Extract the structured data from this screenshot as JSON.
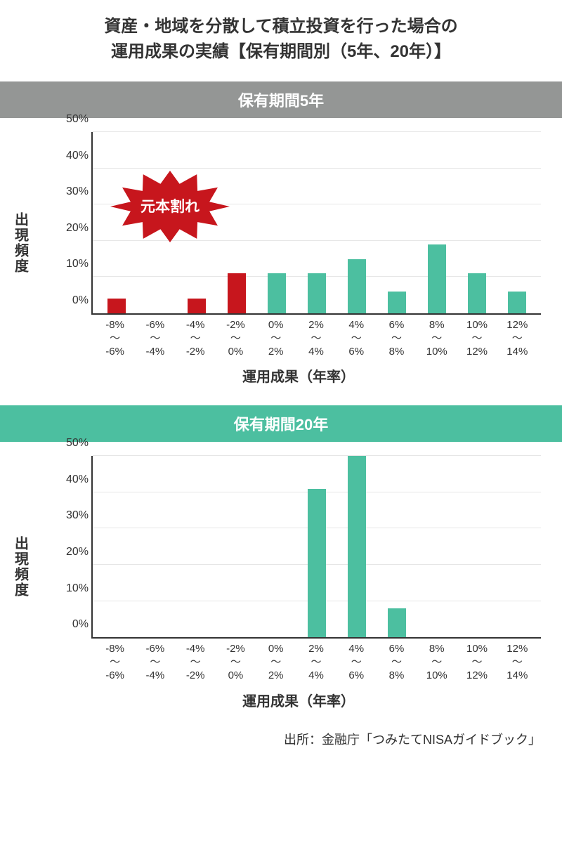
{
  "title_line1": "資産・地域を分散して積立投資を行った場合の",
  "title_line2": "運用成果の実績【保有期間別（5年、20年）】",
  "ylabel": "出現頻度",
  "xlabel": "運用成果（年率）",
  "source": "出所：金融庁「つみたてNISAガイドブック」",
  "colors": {
    "header5": "#949695",
    "header20": "#4cbfa0",
    "bar_pos": "#4cbfa0",
    "bar_neg": "#c7161d",
    "grid": "#e6e6e6",
    "axis": "#333333",
    "starburst": "#c7161d"
  },
  "ymax": 50,
  "yticks": [
    "0%",
    "10%",
    "20%",
    "30%",
    "40%",
    "50%"
  ],
  "categories": [
    "-8%\n〜\n-6%",
    "-6%\n〜\n-4%",
    "-4%\n〜\n-2%",
    "-2%\n〜\n0%",
    "0%\n〜\n2%",
    "2%\n〜\n4%",
    "4%\n〜\n6%",
    "6%\n〜\n8%",
    "8%\n〜\n10%",
    "10%\n〜\n12%",
    "12%\n〜\n14%"
  ],
  "chart5": {
    "header": "保有期間5年",
    "values": [
      4,
      0,
      4,
      11,
      11,
      11,
      15,
      6,
      19,
      11,
      6
    ],
    "neg_flags": [
      true,
      true,
      true,
      true,
      false,
      false,
      false,
      false,
      false,
      false,
      false
    ],
    "callout": "元本割れ"
  },
  "chart20": {
    "header": "保有期間20年",
    "values": [
      0,
      0,
      0,
      0,
      0,
      41,
      50,
      8,
      0,
      0,
      0
    ],
    "neg_flags": [
      false,
      false,
      false,
      false,
      false,
      false,
      false,
      false,
      false,
      false,
      false
    ]
  }
}
